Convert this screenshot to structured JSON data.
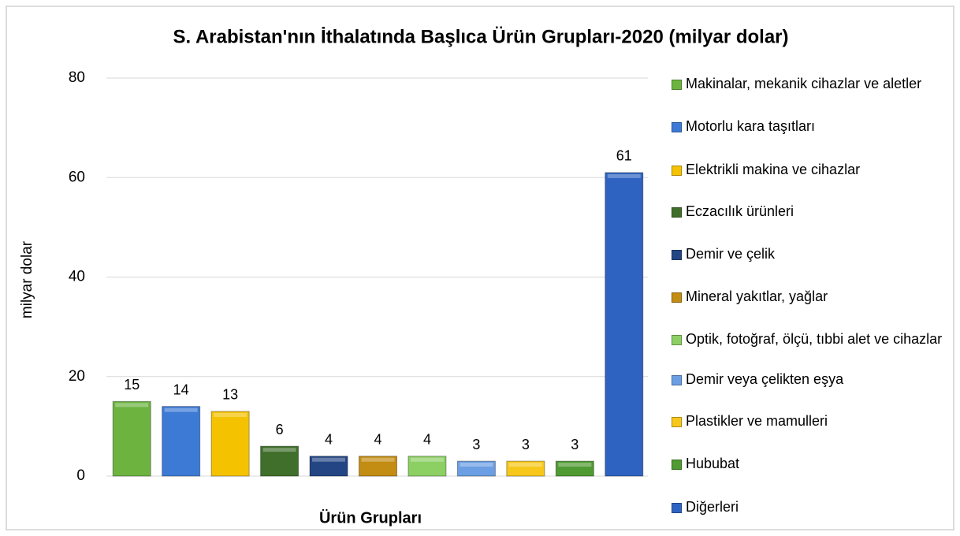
{
  "chart_data": {
    "type": "bar",
    "title": "S. Arabistan'nın İthalatında Başlıca Ürün Grupları-2020 (milyar dolar)",
    "y_label": "milyar dolar",
    "x_label": "Ürün Grupları",
    "categories": [
      null
    ],
    "series": [
      {
        "name": "Makinalar, mekanik cihazlar ve aletler",
        "color": "#6cb33f",
        "values": [
          15
        ]
      },
      {
        "name": "Motorlu kara taşıtları",
        "color": "#3d7ad6",
        "values": [
          14
        ]
      },
      {
        "name": "Elektrikli makina ve cihazlar",
        "color": "#f5c200",
        "values": [
          13
        ]
      },
      {
        "name": "Eczacılık ürünleri",
        "color": "#3f6f2a",
        "values": [
          6
        ]
      },
      {
        "name": "Demir ve çelik",
        "color": "#234584",
        "values": [
          4
        ]
      },
      {
        "name": "Mineral yakıtlar, yağlar",
        "color": "#c38c12",
        "values": [
          4
        ]
      },
      {
        "name": "Optik, fotoğraf, ölçü, tıbbi alet ve cihazlar",
        "color": "#8ccf63",
        "values": [
          4
        ]
      },
      {
        "name": "Demir veya çelikten eşya",
        "color": "#6b9ee2",
        "values": [
          3
        ]
      },
      {
        "name": "Plastikler ve mamulleri",
        "color": "#f7c81a",
        "values": [
          3
        ]
      },
      {
        "name": "Hububat",
        "color": "#4f9a32",
        "values": [
          3
        ]
      },
      {
        "name": "Diğerleri",
        "color": "#2f63c2",
        "values": [
          61
        ]
      }
    ],
    "ylim": [
      0,
      80
    ],
    "yticks": [
      0,
      20,
      40,
      60,
      80
    ],
    "grid": true,
    "legend": "right"
  }
}
